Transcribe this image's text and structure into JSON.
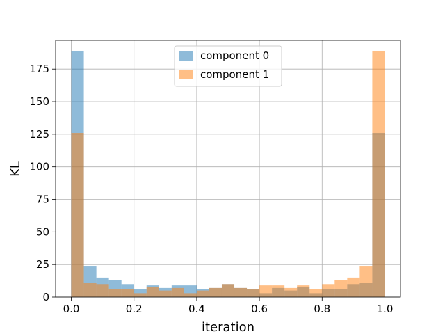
{
  "chart_data": {
    "type": "bar",
    "subtype": "overlaid-histogram",
    "xlabel": "iteration",
    "ylabel": "KL",
    "xlim": [
      -0.05,
      1.05
    ],
    "ylim": [
      0,
      197
    ],
    "xticks": [
      "0.0",
      "0.2",
      "0.4",
      "0.6",
      "0.8",
      "1.0"
    ],
    "xtick_values": [
      0.0,
      0.2,
      0.4,
      0.6,
      0.8,
      1.0
    ],
    "yticks": [
      "0",
      "25",
      "50",
      "75",
      "100",
      "125",
      "150",
      "175"
    ],
    "ytick_values": [
      0,
      25,
      50,
      75,
      100,
      125,
      150,
      175
    ],
    "grid": true,
    "legend_position": "top-center",
    "bins": 25,
    "range": [
      0.0,
      1.0
    ],
    "series": [
      {
        "name": "component 0",
        "color": "#1f77b4",
        "alpha": 0.5,
        "values": [
          189,
          24,
          15,
          13,
          10,
          6,
          9,
          7,
          9,
          9,
          6,
          7,
          10,
          7,
          6,
          3,
          7,
          5,
          8,
          3,
          6,
          6,
          10,
          11,
          126
        ]
      },
      {
        "name": "component 1",
        "color": "#ff7f0e",
        "alpha": 0.5,
        "values": [
          126,
          11,
          10,
          6,
          6,
          3,
          8,
          5,
          7,
          3,
          5,
          7,
          10,
          7,
          6,
          9,
          9,
          7,
          9,
          6,
          10,
          13,
          15,
          24,
          189
        ]
      }
    ]
  }
}
